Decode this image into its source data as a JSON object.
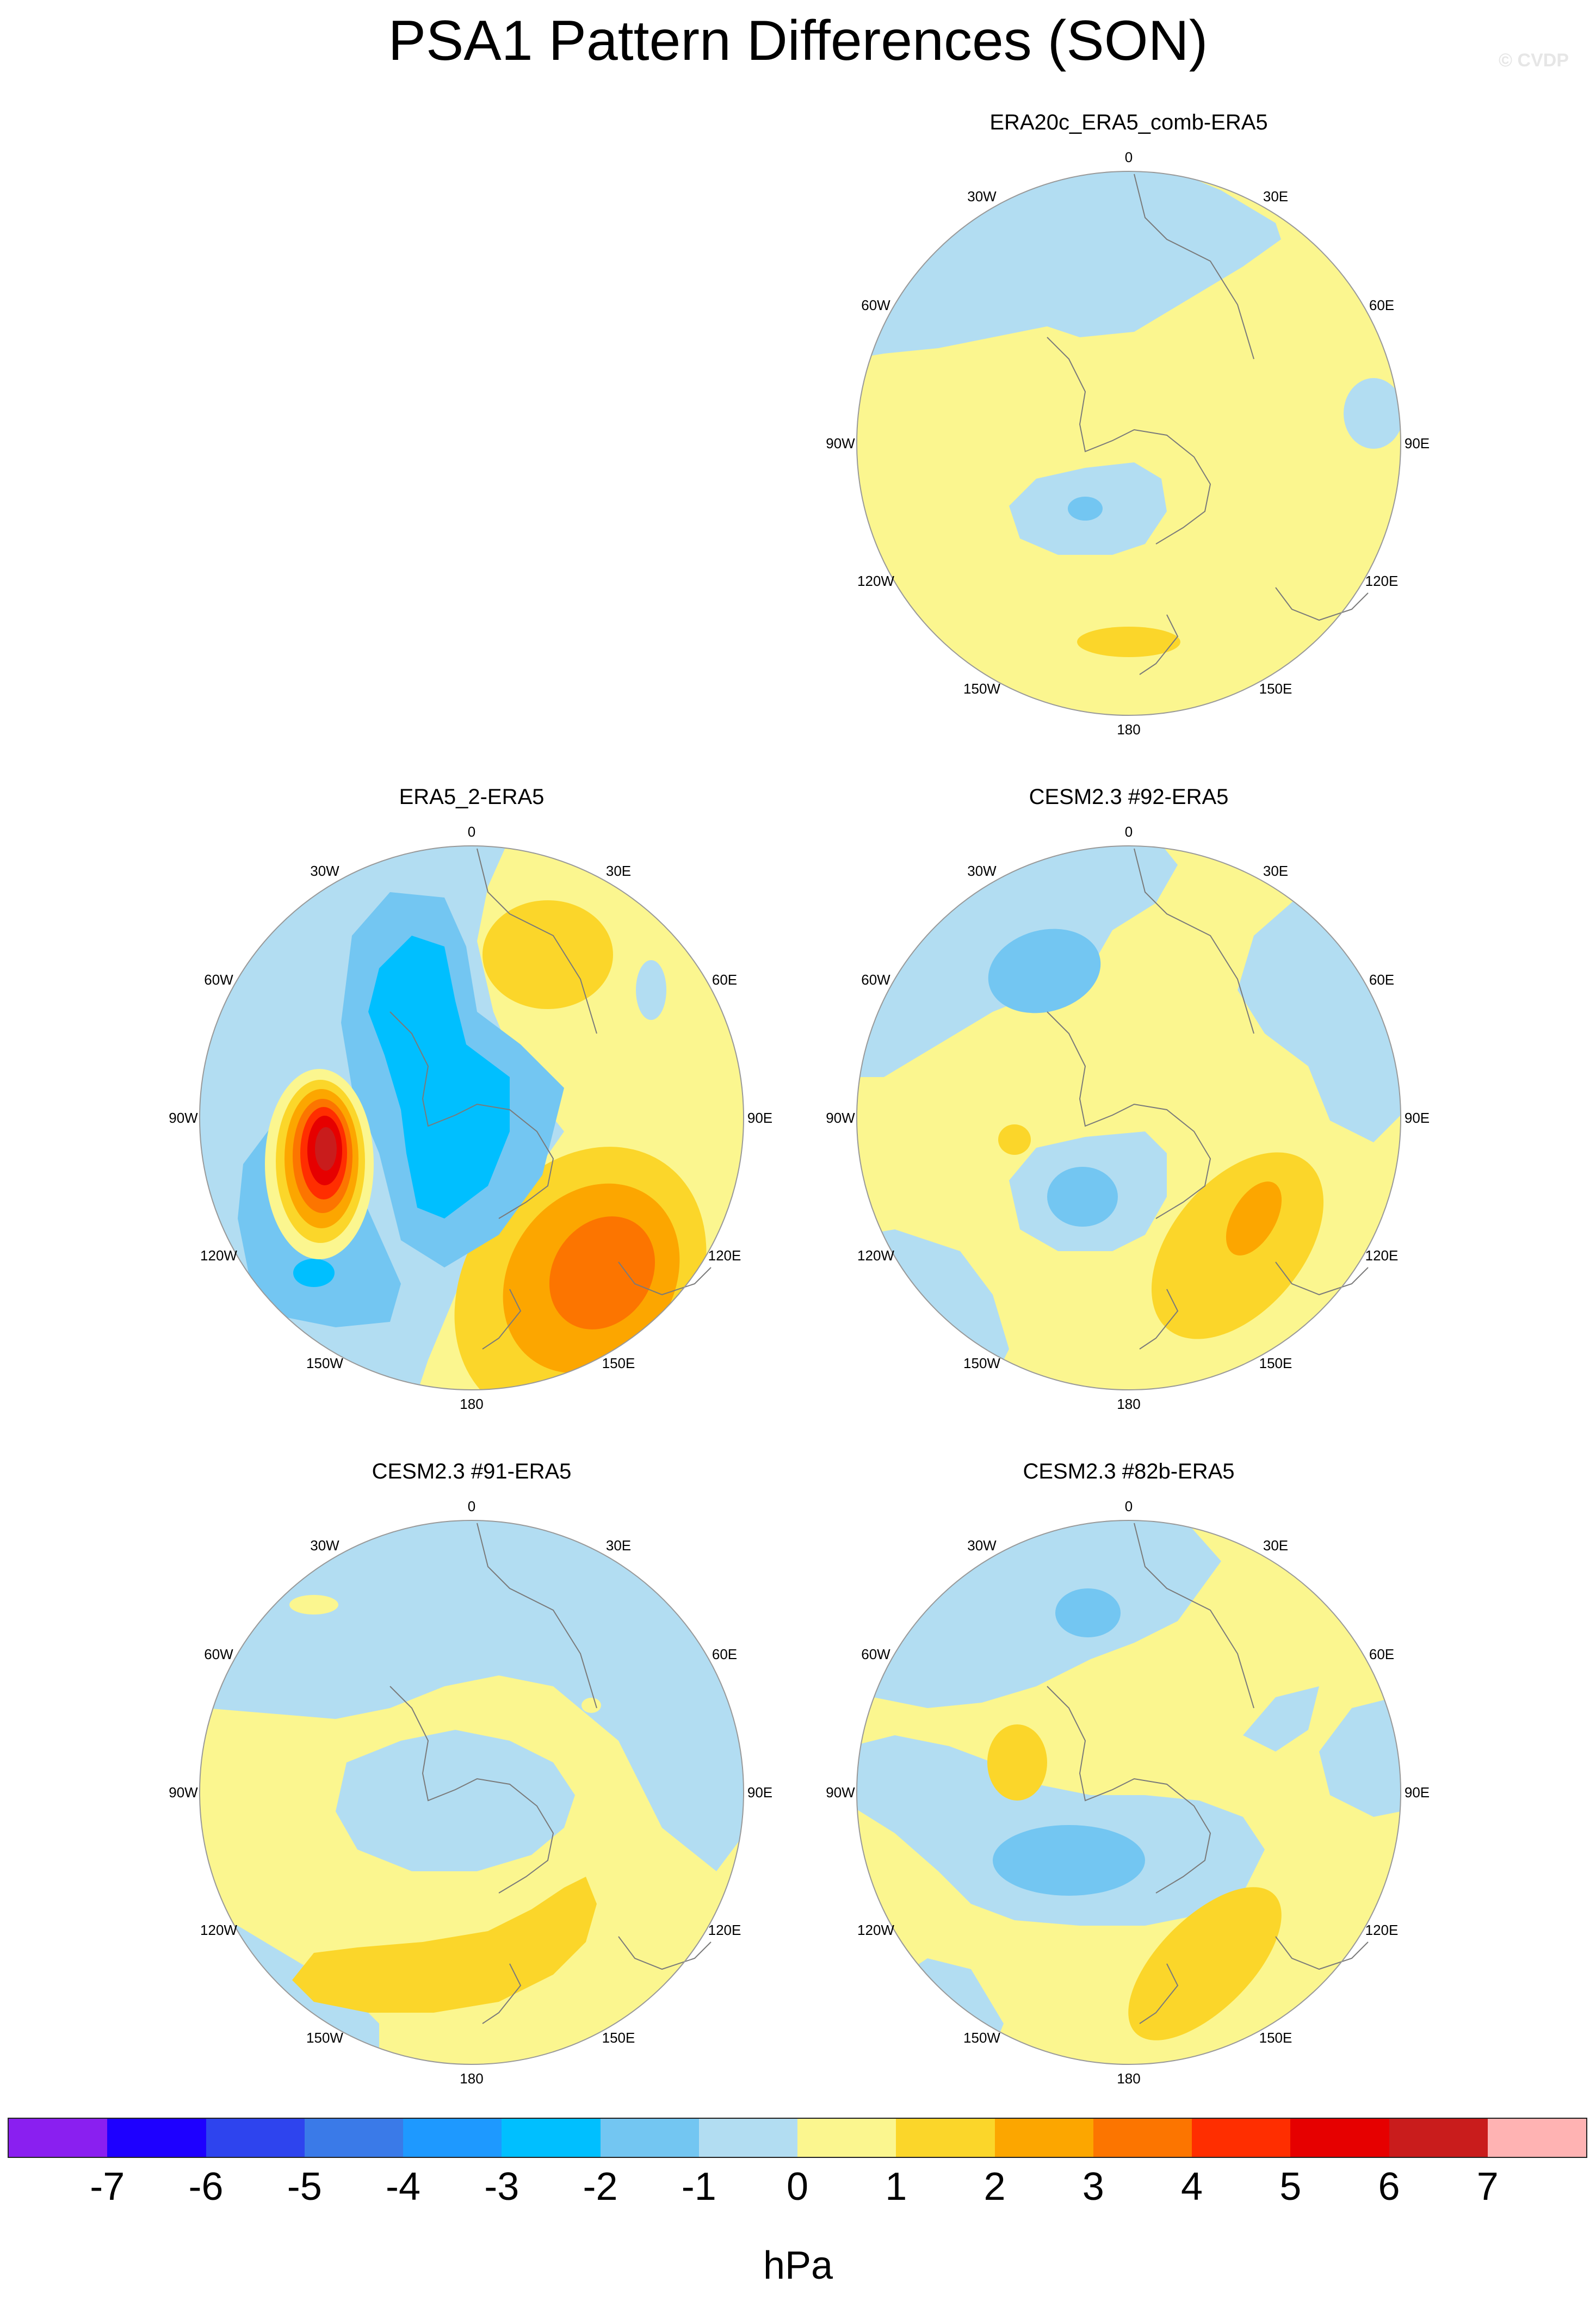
{
  "title": "PSA1 Pattern Differences (SON)",
  "watermark": "© CVDP",
  "units": "hPa",
  "colors": {
    "levels": [
      "#8a1ff0",
      "#1e00ff",
      "#2e44ee",
      "#3a7ae8",
      "#1e99ff",
      "#00bfff",
      "#73c6f2",
      "#b2ddf2",
      "#fbf68f",
      "#fbd62a",
      "#fca600",
      "#fc7500",
      "#ff2e00",
      "#e60000",
      "#c91c1c",
      "#ffb3b3"
    ],
    "coast": "#7a7a7a"
  },
  "colorbar_ticks": [
    "-7",
    "-6",
    "-5",
    "-4",
    "-3",
    "-2",
    "-1",
    "0",
    "1",
    "2",
    "3",
    "4",
    "5",
    "6",
    "7"
  ],
  "lon_labels": [
    "0",
    "30E",
    "60E",
    "90E",
    "120E",
    "150E",
    "180",
    "150W",
    "120W",
    "90W",
    "60W",
    "30W"
  ],
  "panels": [
    {
      "title": "ERA20c_ERA5_comb-ERA5"
    },
    {
      "title": "ERA5_2-ERA5"
    },
    {
      "title": "CESM2.3 #92-ERA5"
    },
    {
      "title": "CESM2.3 #91-ERA5"
    },
    {
      "title": "CESM2.3 #82b-ERA5"
    }
  ]
}
